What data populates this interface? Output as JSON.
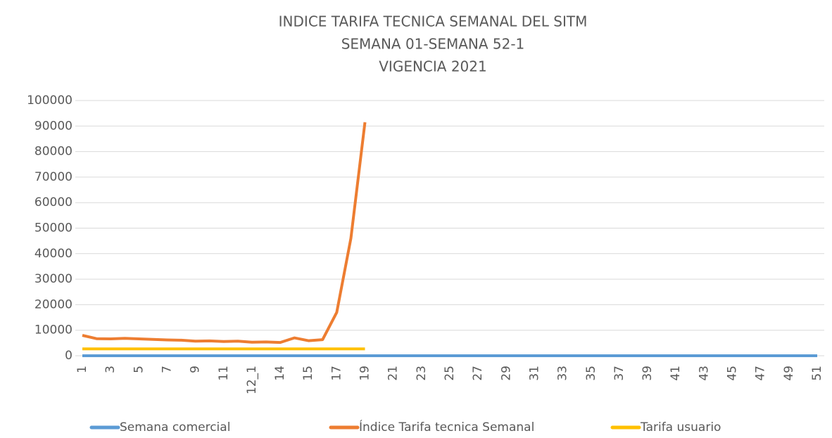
{
  "chart_data": {
    "type": "line",
    "title": [
      "INDICE TARIFA TECNICA SEMANAL DEL SITM",
      "SEMANA 01-SEMANA 52-1",
      "VIGENCIA 2021"
    ],
    "categories": [
      "1",
      null,
      "3",
      null,
      "5",
      null,
      "7",
      null,
      "9",
      null,
      "11",
      null,
      "12_1",
      null,
      "14",
      null,
      "15",
      null,
      "17",
      null,
      "19",
      null,
      "21",
      null,
      "23",
      null,
      "25",
      null,
      "27",
      null,
      "29",
      null,
      "31",
      null,
      "33",
      null,
      "35",
      null,
      "37",
      null,
      "39",
      null,
      "41",
      null,
      "43",
      null,
      "45",
      null,
      "47",
      null,
      "49",
      null,
      "51"
    ],
    "series": [
      {
        "name": "Semana comercial",
        "color": "#5b9bd5",
        "values": [
          0,
          0,
          0,
          0,
          0,
          0,
          0,
          0,
          0,
          0,
          0,
          0,
          0,
          0,
          0,
          0,
          0,
          0,
          0,
          0,
          0,
          0,
          0,
          0,
          0,
          0,
          0,
          0,
          0,
          0,
          0,
          0,
          0,
          0,
          0,
          0,
          0,
          0,
          0,
          0,
          0,
          0,
          0,
          0,
          0,
          0,
          0,
          0,
          0,
          0,
          0,
          0,
          0
        ]
      },
      {
        "name": "Índice Tarifa tecnica Semanal",
        "color": "#ed7d31",
        "values": [
          8000,
          6700,
          6600,
          6800,
          6600,
          6400,
          6200,
          6100,
          5700,
          5800,
          5600,
          5700,
          5300,
          5400,
          5200,
          7000,
          5900,
          6300,
          17000,
          46000,
          91500,
          null,
          null,
          null,
          null,
          null,
          null,
          null,
          null,
          null,
          null,
          null,
          null,
          null,
          null,
          null,
          null,
          null,
          null,
          null,
          null,
          null,
          null,
          null,
          null,
          null,
          null,
          null,
          null,
          null,
          null,
          null,
          null
        ]
      },
      {
        "name": "Tarifa usuario",
        "color": "#ffc000",
        "values": [
          2700,
          2700,
          2700,
          2700,
          2700,
          2700,
          2700,
          2700,
          2700,
          2700,
          2700,
          2700,
          2700,
          2700,
          2700,
          2700,
          2700,
          2700,
          2700,
          2700,
          2700,
          null,
          null,
          null,
          null,
          null,
          null,
          null,
          null,
          null,
          null,
          null,
          null,
          null,
          null,
          null,
          null,
          null,
          null,
          null,
          null,
          null,
          null,
          null,
          null,
          null,
          null,
          null,
          null,
          null,
          null,
          null,
          null
        ]
      }
    ],
    "ylim": [
      0,
      100000
    ],
    "yticks": [
      0,
      10000,
      20000,
      30000,
      40000,
      50000,
      60000,
      70000,
      80000,
      90000,
      100000
    ],
    "grid": true
  }
}
